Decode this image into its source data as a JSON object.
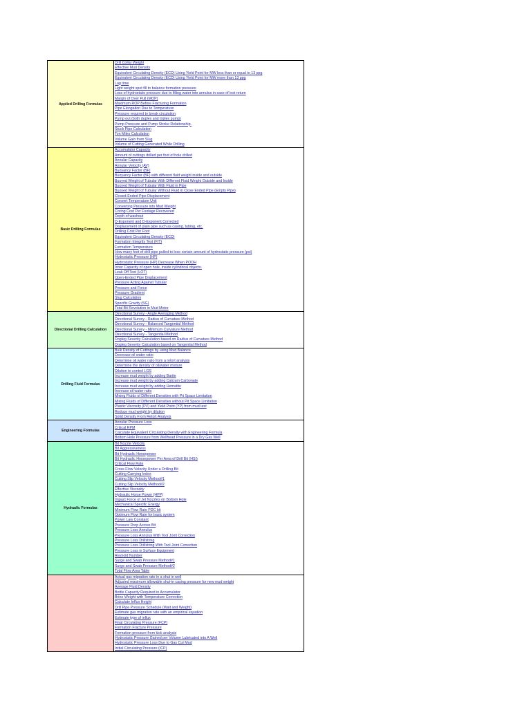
{
  "sections": [
    {
      "title": "Applied Drilling Formulas",
      "color": "#ffffcc",
      "items": [
        "Drill Collar Weight",
        "Effective Mud Density",
        "Equivalent Circulating Density (ECD) Using Yield Point for MW less than or equal to 13 ppg",
        "Equivalent Circulating Density (ECD) Using Yield Point for MW more than 13 ppg",
        "Lag time",
        "Light weight spot fill to balance formation pressure",
        "Loss of hydrostatic pressure due to filling water into annulus in case of lost return",
        "Margin of Over Pull (MOP)",
        "Maximum ROP Before Fracturing Formation",
        "Pipe Elongation Due to Temperature",
        "Pressure required to break circulation",
        "Pump out (both duplex and triplex pump)",
        "Pump Pressure and Pump Stroke Relationship.",
        "Stuck Pipe Calculation",
        "Ton Miles Calculation",
        "Volume Gain from Slug",
        "Volume of Cutting Generated While Drilling"
      ]
    },
    {
      "title": "Basic Drilling Formulas",
      "color": "#ffff99",
      "items": [
        "Accumulator Capacity",
        "Amount of cuttings drilled per foot of hole drilled",
        "Annular Capacity",
        "Annular Velocity (AV)",
        "Buoyancy Factor (BF)",
        "Buoyancy Factor (BF) with different fluid weight inside and outside",
        "Buoyed Weight of Tubular With Different Fluid Weight Outside and Inside",
        "Buoyed Weight of Tubular With Fluid in Pipe",
        "Buoyed Weight of Tubular Without Fluid in Close Ended Pipe (Empty Pipe)",
        "Closed-Ended Pipe Displacement",
        "Convert Temperature Unit",
        "Converting Pressure into Mud Weight",
        "Coring Cost Per Footage Recovered",
        "Depth of washout",
        "D-Exponent and D-Exponent Corrected",
        "Displacement of plain pipe such as casing, tubing, etc.",
        "Drilling Cost Per Foot",
        "Equivalent Circulating Density (ECD)",
        "Formation Integrity Test (FIT)",
        "Formation Temperature",
        "How many feet of drill pipe pulled to lose certain amount of hydrostatic pressure (psi)",
        "Hydrostatic Pressure (HP)",
        "Hydrostatic Pressure (HP) Decrease When POOH",
        "Inner Capacity of open hole, inside cylindrical objects.",
        "Leak Off Test (LOT)",
        "Open-Ended Pipe Displacement",
        "Pressure Acting Against Tubular",
        "Pressure and Force",
        "Pressure Gradient",
        "Slug Calculation",
        "Specific Gravity (SG)",
        "Total Bit Revolution in Mud Motor"
      ]
    },
    {
      "title": "Directional Drilling Calculation",
      "color": "#ccffcc",
      "items": [
        "Directional Survey - Angle Averaging Method",
        "Directional Survey - Radius of Curvature Method",
        "Directional Survey - Balanced Tangential Method",
        "Directional Survey - Minimum Curvature Method",
        "Directional Survey - Tangential Method",
        "Dogleg Severity Calculation based on Radius of Curvature Method",
        "Dogleg Severity Calculation based on Tangential Method"
      ]
    },
    {
      "title": "Drilling Fluid Formulas",
      "color": "#ccffff",
      "items": [
        "Bulk Density of Cuttings by using Mud Balance",
        "Decrease oil water ratio",
        "Determine oil water ratio from a retort analysis",
        "Determine the density of oil/water mixture",
        "Dilution to control LGS",
        "Increase mud weight by adding Barite",
        "Increase mud weight by adding Calcium Carbonate",
        "Increase mud weight by adding Hematite",
        "Increase oil water ratio",
        "Mixing Fluids of Different Densities with Pit Space Limitation",
        "Mixing Fluids of Different Densities without Pit Space Limitation",
        "Plastic Viscosity (PV) and Yield Point (YP) from mud test",
        "Reduce mud weight by dilution",
        "Solid Density From Retort Analysis"
      ]
    },
    {
      "title": "Engineering Formulas",
      "color": "#cce5ff",
      "items": [
        "Annular Pressure Loss",
        "Critical RPM",
        "Calculate Equivalent Circulating Density with Engineering Formula",
        "Bottom Hole Pressure from Wellhead Pressure in a Dry Gas Well"
      ]
    },
    {
      "title": "Hydraulic Formulas",
      "color": "#99ffcc",
      "items": [
        "Bit Nozzle Velocity",
        "Bit Aggressiveness",
        "Bit Hydraulic Horsepower",
        "Bit Hydraulic Horsepower Per Area of Drill Bit (HSI)",
        "Critical Flow Rate",
        "Cross Flow Velocity Under a Drilling Bit",
        "Cutting Carrying Index",
        "Cutting Slip Velocity Method#1",
        "Cutting Slip Velocity Method#2",
        "Effective Viscosity",
        "Hydraulic Horse Power (HPP)",
        "Impact Force of Jet Nozzles on Bottom Hole",
        "Mechanical Specific Energy",
        "Minimum Flow Rate PDC bit",
        "Optimum Flow Rate for basic system",
        "Power Law Constant",
        "Pressure Drop Across Bit",
        "Pressure Loss Annulus",
        "Pressure Loss Annulus With Tool Joint Correction",
        "Pressure Loss Drillstring",
        "Pressure Loss Drillstring With Tool Joint Correction",
        "Pressure Loss in Surface Equipment",
        "Reynold Number",
        "Surge and Swab Pressure Method#1",
        "Surge and Swab Pressure Method#2",
        "Total Flow Area Table"
      ]
    },
    {
      "title": "",
      "color": "#ffcccc",
      "items": [
        "Actual gas migration rate in a shut in well",
        "Adjusted maximum allowable shut-in casing pressure for new mud weight",
        "Average Fluid Density",
        "Bottle Capacity Required in Accumulator",
        "Brine Weight with Temperature Correction",
        "Calculate Influx Height",
        "Drill Pipe Pressure Schedule (Wait and Weight)",
        "Estimate gas migration rate with an empirical equation",
        "Estimate type of influx",
        "Final Circulating Pressure (FCP)",
        "Formation Fracture Pressure",
        "Formation pressure from kick analysis",
        "Hydrostatic Pressure Gained per Volume Lubricated into A Well",
        "Hydrostatic Pressure Loss Due to Gas Cut Mud",
        "Initial Circulating Pressure (ICP)"
      ]
    }
  ]
}
